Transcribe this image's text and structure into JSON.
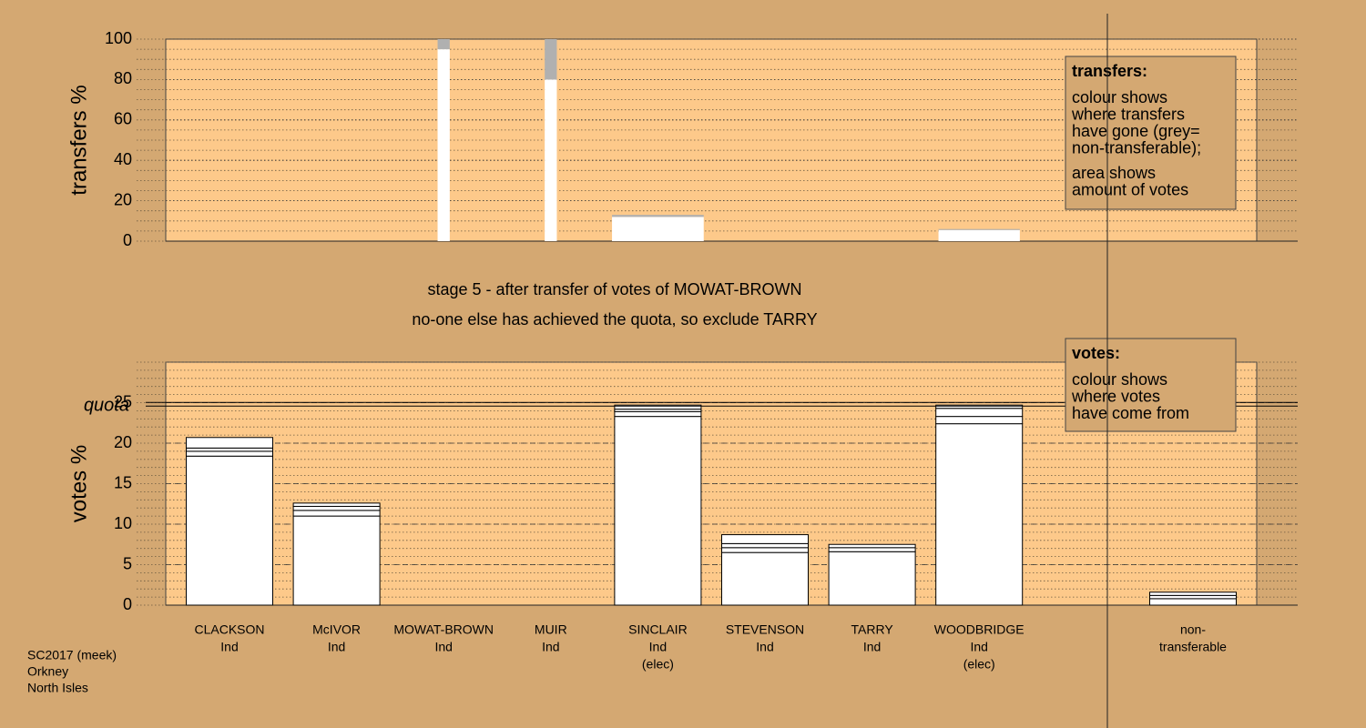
{
  "chart_data": [
    {
      "type": "bar",
      "stacked": true,
      "ylabel": "transfers %",
      "ylim": [
        0,
        100
      ],
      "yticks": [
        0,
        20,
        40,
        60,
        80,
        100
      ],
      "grid": true,
      "major_grid": "dotted",
      "minor_per_tick": 4,
      "widths": [
        0,
        0,
        0.14,
        0.14,
        1.06,
        0,
        0,
        0.94,
        0
      ],
      "series": [
        {
          "color": "#ffffff",
          "values": [
            0,
            0,
            95,
            80,
            12,
            0,
            0,
            5.5,
            0
          ]
        },
        {
          "color": "#b0b0b0",
          "values": [
            0,
            0,
            5,
            20,
            1,
            0,
            0,
            0.5,
            0
          ]
        }
      ],
      "legend": {
        "title": "transfers:",
        "paragraphs": [
          [
            "colour shows",
            "where transfers",
            "have gone (grey=",
            "non-transferable);"
          ],
          [
            "area shows",
            "amount of votes"
          ]
        ]
      }
    },
    {
      "type": "bar",
      "stacked": true,
      "ylabel": "votes %",
      "ylim": [
        0,
        30
      ],
      "yticks": [
        0,
        5,
        10,
        15,
        20,
        25
      ],
      "grid": true,
      "major_grid": "dashed",
      "minor_per_tick": 5,
      "quota": 24.8,
      "quota_label": "quota",
      "categories": [
        [
          "CLACKSON",
          "Ind"
        ],
        [
          "McIVOR",
          "Ind"
        ],
        [
          "MOWAT-BROWN",
          "Ind"
        ],
        [
          "MUIR",
          "Ind"
        ],
        [
          "SINCLAIR",
          "Ind",
          "(elec)"
        ],
        [
          "STEVENSON",
          "Ind"
        ],
        [
          "TARRY",
          "Ind"
        ],
        [
          "WOODBRIDGE",
          "Ind",
          "(elec)"
        ],
        [
          "non-",
          "transferable"
        ]
      ],
      "series": [
        {
          "color": "#ffffff",
          "values": [
            18.4,
            11.0,
            0,
            0,
            23.3,
            6.5,
            6.6,
            22.4,
            0
          ]
        },
        {
          "color": "#ffffff",
          "values": [
            0.6,
            0.7,
            0,
            0,
            0.6,
            0.6,
            0.5,
            0.9,
            0.8
          ]
        },
        {
          "color": "#ffffff",
          "values": [
            0.4,
            0.5,
            0,
            0,
            0.3,
            0.5,
            0.4,
            1.0,
            0.4
          ]
        },
        {
          "color": "#ffffff",
          "values": [
            1.3,
            0.4,
            0,
            0,
            0.5,
            1.1,
            0,
            0.4,
            0.4
          ]
        }
      ],
      "legend": {
        "title": "votes:",
        "paragraphs": [
          [
            "colour shows",
            "where votes",
            "have come from"
          ]
        ]
      }
    }
  ],
  "caption": [
    "stage 5 - after transfer of votes of MOWAT-BROWN",
    "no-one else has achieved the quota, so exclude TARRY"
  ],
  "footer": [
    "SC2017 (meek)",
    "Orkney",
    "North Isles"
  ]
}
